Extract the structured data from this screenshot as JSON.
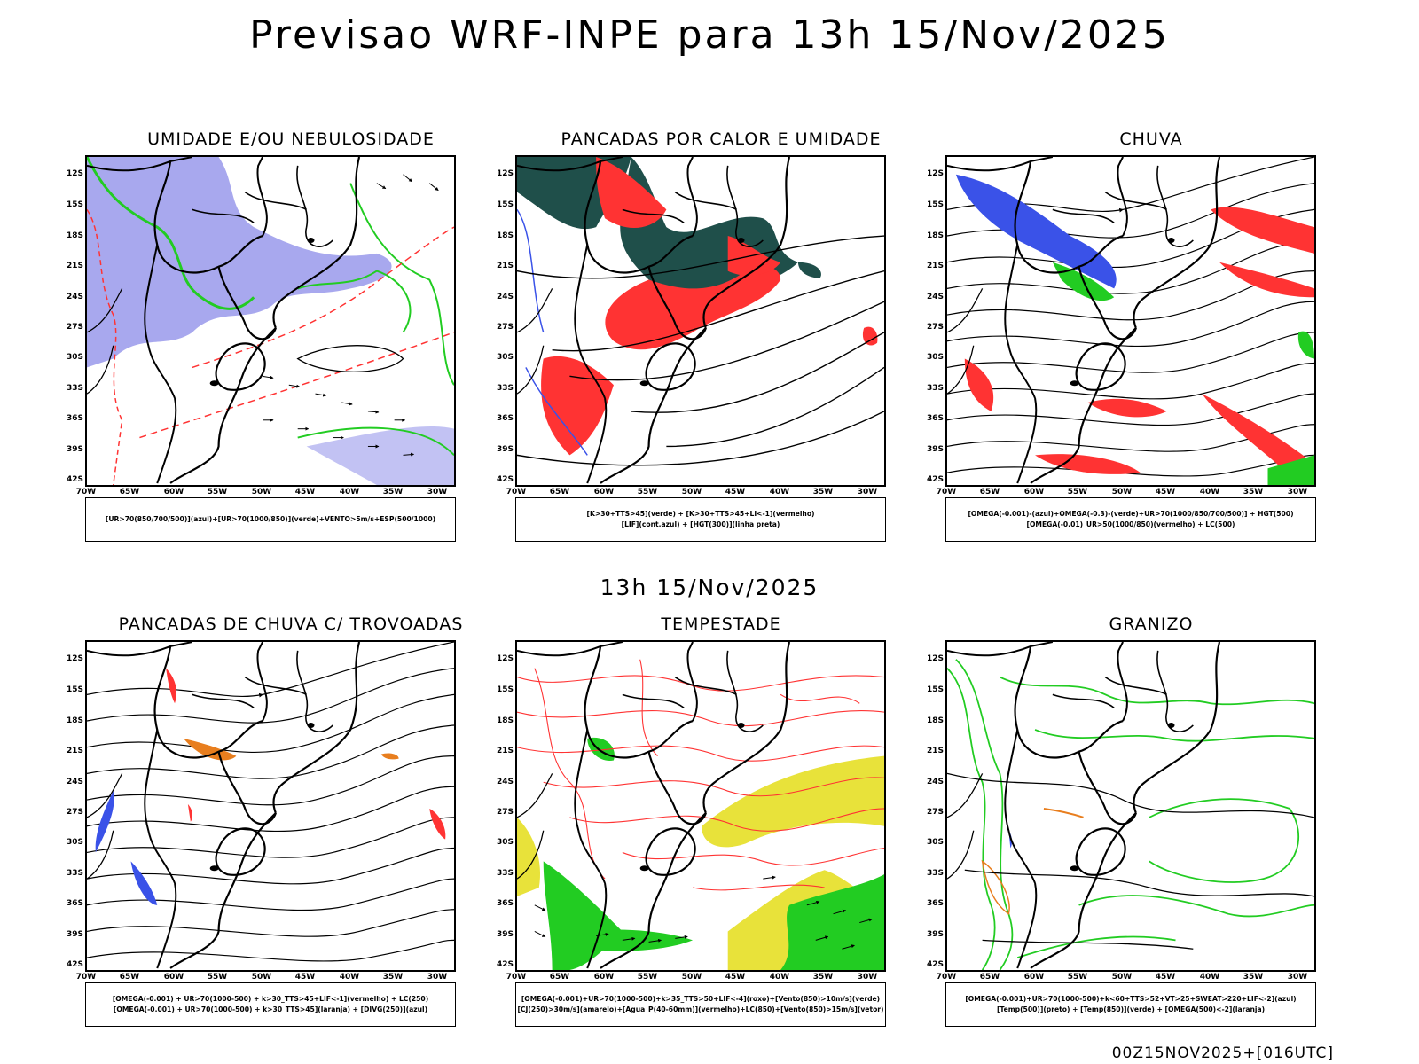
{
  "title": "Previsao WRF-INPE  para 13h 15/Nov/2025",
  "subtitle": "13h 15/Nov/2025",
  "footer": "00Z15NOV2025+[016UTC]",
  "lat_labels": [
    "12S",
    "15S",
    "18S",
    "21S",
    "24S",
    "27S",
    "30S",
    "33S",
    "36S",
    "39S",
    "42S"
  ],
  "lon_labels": [
    "70W",
    "65W",
    "60W",
    "55W",
    "50W",
    "45W",
    "40W",
    "35W",
    "30W"
  ],
  "colors": {
    "blue": "#3a52e8",
    "green": "#22cc22",
    "red": "#ff3333",
    "darkteal": "#1f4f4a",
    "lavender": "#a8a8ee",
    "orange": "#e87e1e",
    "yellow": "#e8e23a"
  },
  "panels": [
    {
      "title": "UMIDADE E/OU NEBULOSIDADE",
      "legend": [
        "[UR>70(850/700/500)](azul)+[UR>70(1000/850)](verde)+VENTO>5m/s+ESP(500/1000)"
      ]
    },
    {
      "title": "PANCADAS POR CALOR E UMIDADE",
      "legend": [
        "[K>30+TTS>45](verde) + [K>30+TTS>45+LI<-1](vermelho)",
        "[LIF](cont.azul) + [HGT(300)](linha preta)"
      ]
    },
    {
      "title": "CHUVA",
      "legend": [
        "[OMEGA(-0.001)-(azul)+OMEGA(-0.3)-(verde)+UR>70(1000/850/700/500)] + HGT(500)",
        "[OMEGA(-0.01)_UR>50(1000/850)(vermelho) + LC(500)"
      ]
    },
    {
      "title": "PANCADAS DE CHUVA C/ TROVOADAS",
      "legend": [
        "[OMEGA(-0.001) + UR>70(1000-500) + k>30_TTS>45+LIF<-1](vermelho) + LC(250)",
        "[OMEGA(-0.001) + UR>70(1000-500) + k>30_TTS>45](laranja) + [DIVG(250)](azul)"
      ]
    },
    {
      "title": "TEMPESTADE",
      "legend": [
        "[OMEGA(-0.001)+UR>70(1000-500)+k>35_TTS>50+LIF<-4](roxo)+[Vento(850)>10m/s](verde)",
        "[CJ(250)>30m/s](amarelo)+[Agua_P(40-60mm)](vermelho)+LC(850)+[Vento(850)>15m/s](vetor)"
      ]
    },
    {
      "title": "GRANIZO",
      "legend": [
        "[OMEGA(-0.001)+UR>70(1000-500)+k<60+TTS>52+VT>25+SWEAT>220+LIF<-2](azul)",
        "[Temp(500)](preto) + [Temp(850)](verde) + [OMEGA(500)<-2](laranja)"
      ]
    }
  ]
}
